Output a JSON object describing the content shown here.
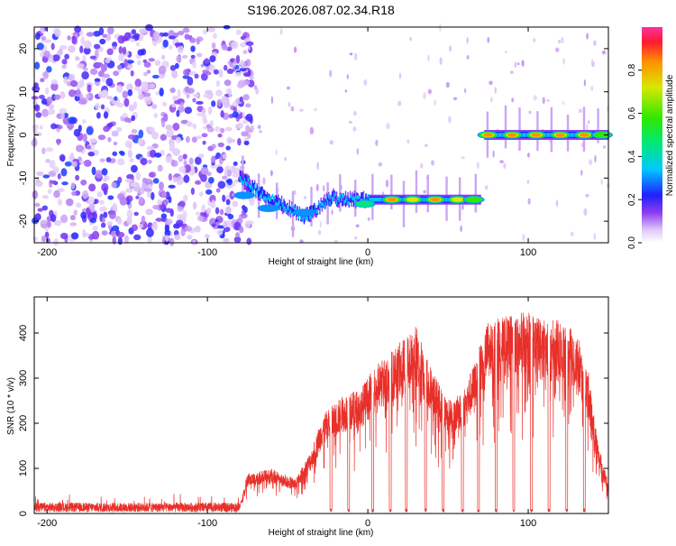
{
  "title": "S196.2026.087.02.34.R18",
  "chart_data": [
    {
      "type": "heatmap",
      "xlabel": "Height of straight line (km)",
      "ylabel": "Frequency (Hz)",
      "xlim": [
        -208,
        150
      ],
      "ylim": [
        -25,
        25
      ],
      "xticks": [
        -200,
        -100,
        0,
        100
      ],
      "yticks": [
        -20,
        -10,
        0,
        10,
        20
      ],
      "colorbar": {
        "label": "Normalized spectral amplitude",
        "range": [
          0,
          1
        ],
        "ticks": [
          0.0,
          0.2,
          0.4,
          0.6,
          0.8
        ]
      },
      "noise_region": {
        "x_from": -208,
        "x_to": -80,
        "amplitude_range": [
          0.05,
          0.25
        ]
      },
      "tone_segments": [
        {
          "x_from": -80,
          "x_to": -65,
          "freq_from": -10,
          "freq_to": -14
        },
        {
          "x_from": -65,
          "x_to": -40,
          "freq_from": -14,
          "freq_to": -19
        },
        {
          "x_from": -40,
          "x_to": -20,
          "freq_from": -19,
          "freq_to": -14
        },
        {
          "x_from": -20,
          "x_to": 70,
          "freq_from": -15,
          "freq_to": -15
        },
        {
          "x_from": 72,
          "x_to": 150,
          "freq_from": 0,
          "freq_to": 0
        }
      ],
      "peaks": [
        {
          "x": -77,
          "freq": -14,
          "amp": 0.3
        },
        {
          "x": -62,
          "freq": -17,
          "amp": 0.35
        },
        {
          "x": -40,
          "freq": -18,
          "amp": 0.3
        },
        {
          "x": -15,
          "freq": -13,
          "amp": 0.2
        },
        {
          "x": -2,
          "freq": -16,
          "amp": 0.45
        },
        {
          "x": 15,
          "freq": -15,
          "amp": 0.85
        },
        {
          "x": 28,
          "freq": -15,
          "amp": 0.8
        },
        {
          "x": 42,
          "freq": -15,
          "amp": 0.85
        },
        {
          "x": 56,
          "freq": -15,
          "amp": 0.8
        },
        {
          "x": 66,
          "freq": -15,
          "amp": 0.7
        },
        {
          "x": 75,
          "freq": 0,
          "amp": 0.85
        },
        {
          "x": 90,
          "freq": 0,
          "amp": 0.9
        },
        {
          "x": 105,
          "freq": 0,
          "amp": 0.9
        },
        {
          "x": 120,
          "freq": 0,
          "amp": 0.9
        },
        {
          "x": 135,
          "freq": 0,
          "amp": 0.9
        },
        {
          "x": 146,
          "freq": 0,
          "amp": 0.7
        }
      ]
    },
    {
      "type": "line",
      "xlabel": "Height of straight line (km)",
      "ylabel": "SNR (10 * v/v)",
      "xlim": [
        -208,
        150
      ],
      "ylim": [
        0,
        480
      ],
      "xticks": [
        -200,
        -100,
        0,
        100
      ],
      "yticks": [
        0,
        100,
        200,
        300,
        400
      ],
      "color": "#e8302a",
      "envelope": [
        {
          "x": -208,
          "snr": 15
        },
        {
          "x": -150,
          "snr": 15
        },
        {
          "x": -80,
          "snr": 15
        },
        {
          "x": -75,
          "snr": 80
        },
        {
          "x": -60,
          "snr": 90
        },
        {
          "x": -45,
          "snr": 70
        },
        {
          "x": -35,
          "snr": 130
        },
        {
          "x": -28,
          "snr": 200
        },
        {
          "x": -15,
          "snr": 240
        },
        {
          "x": -5,
          "snr": 250
        },
        {
          "x": 5,
          "snr": 300
        },
        {
          "x": 15,
          "snr": 330
        },
        {
          "x": 25,
          "snr": 360
        },
        {
          "x": 30,
          "snr": 380
        },
        {
          "x": 40,
          "snr": 290
        },
        {
          "x": 50,
          "snr": 230
        },
        {
          "x": 58,
          "snr": 240
        },
        {
          "x": 66,
          "snr": 300
        },
        {
          "x": 75,
          "snr": 390
        },
        {
          "x": 90,
          "snr": 400
        },
        {
          "x": 100,
          "snr": 410
        },
        {
          "x": 110,
          "snr": 390
        },
        {
          "x": 120,
          "snr": 390
        },
        {
          "x": 130,
          "snr": 370
        },
        {
          "x": 138,
          "snr": 280
        },
        {
          "x": 143,
          "snr": 150
        },
        {
          "x": 150,
          "snr": 60
        }
      ],
      "dips_x": [
        -23,
        -12,
        3,
        14,
        24,
        36,
        47,
        59,
        69,
        80,
        91,
        102,
        113,
        124,
        135
      ]
    }
  ]
}
